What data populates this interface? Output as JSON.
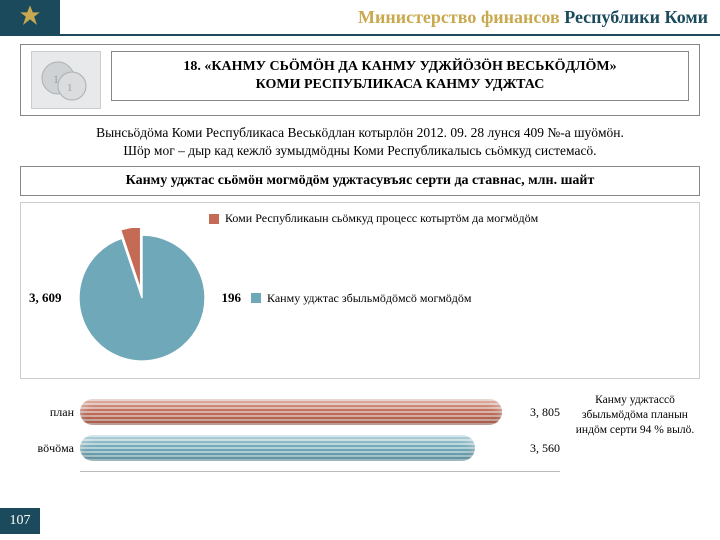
{
  "header": {
    "title_gold": "Министерство финансов ",
    "title_dark": "Республики Коми"
  },
  "section18": {
    "title_line1": "18. «КАНМУ СЬÖМÖН ДА КАНМУ УДЖЙÖЗÖН ВЕСЬКÖДЛÖМ»",
    "title_line2": "КОМИ РЕСПУБЛИКАСА КАНМУ УДЖТАС"
  },
  "desc": {
    "line1": "Вынсьöдöма Коми Республикаса Веськöдлан котырлöн 2012. 09. 28 лунся 409 №-а шуöмöн.",
    "line2": "Шöр мог – дыр кад кежлö зумыдмöдны Коми Республикалысь сьöмкуд системасö."
  },
  "subhead": "Канму уджтас сьöмöн могмöдöм уджтасувъяс серти да ставнас, млн. шайт",
  "legend": {
    "item1": {
      "label": "Коми Республикаын сьöмкуд процесс котыртöм да могмöдöм",
      "color": "#c46a55"
    },
    "item2": {
      "label": "Канму уджтас збыльмöдöмсö могмöдöм",
      "color": "#6fa8b8"
    }
  },
  "pie": {
    "type": "pie",
    "slices": [
      {
        "label": "3, 609",
        "value": 3609,
        "color": "#6fa8b8"
      },
      {
        "label": "196",
        "value": 196,
        "color": "#c46a55"
      }
    ],
    "label_fontsize": 13,
    "bg": "#ffffff",
    "slice2_angle_deg": 18.6
  },
  "bars": {
    "type": "bar-horizontal-cylinder",
    "max": 4000,
    "bg": "#ffffff",
    "rows": [
      {
        "cat": "план",
        "value": 3805,
        "value_label": "3, 805",
        "fill": "#c46a55",
        "hatch": "#d7b4aa"
      },
      {
        "cat": "вöчöма",
        "value": 3560,
        "value_label": "3, 560",
        "fill": "#6fa8b8",
        "hatch": "#b6d3da"
      }
    ]
  },
  "note": "Канму уджтассö збыльмöдöма планын индöм серти 94 % вылö.",
  "page_no": "107",
  "colors": {
    "header_dark": "#1a4a5c",
    "gold": "#c9a94f"
  }
}
